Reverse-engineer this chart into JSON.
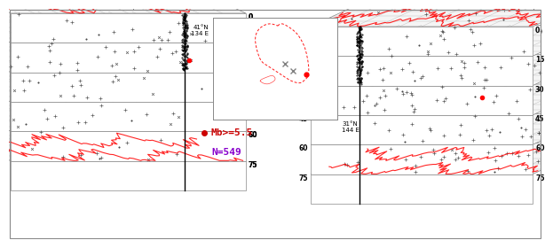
{
  "background_color": "#ffffff",
  "legend_mb_label": "Mb>=5.5",
  "legend_n_label": "N=549",
  "legend_mb_color": "#cc0000",
  "legend_n_color": "#8800cc",
  "depth_ticks": [
    0,
    15,
    30,
    45,
    60,
    75
  ],
  "map_corner_ul": "41°N\n134 E",
  "map_corner_lr": "31°N\n144 E",
  "border_color": "#888888",
  "layer_facecolor": "#f5f5f5",
  "layer_edgecolor": "#888888",
  "grid_color": "#999999",
  "nail_color": "#000000",
  "scatter_color": "#555555"
}
